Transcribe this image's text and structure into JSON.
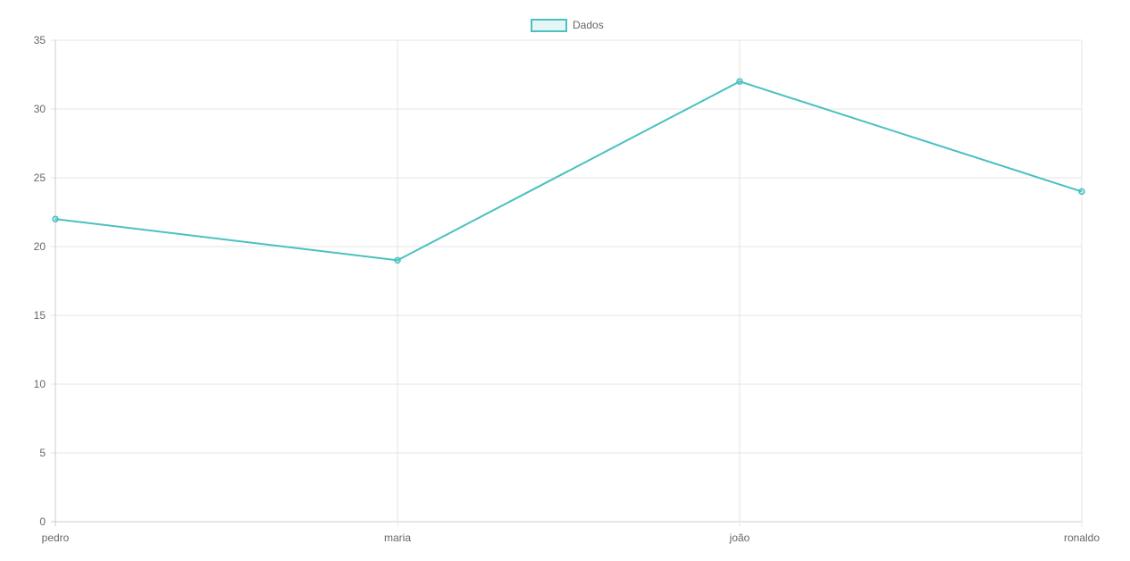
{
  "chart_data": {
    "type": "line",
    "categories": [
      "pedro",
      "maria",
      "joão",
      "ronaldo"
    ],
    "series": [
      {
        "name": "Dados",
        "values": [
          22,
          19,
          32,
          24
        ]
      }
    ],
    "ylim": [
      0,
      35
    ],
    "yticks": [
      0,
      5,
      10,
      15,
      20,
      25,
      30,
      35
    ],
    "grid": true,
    "legend": "top-center",
    "colors": {
      "line": "#4bc0c0",
      "grid": "#e6e6e6",
      "axis": "#cccccc",
      "text": "#666666"
    }
  }
}
